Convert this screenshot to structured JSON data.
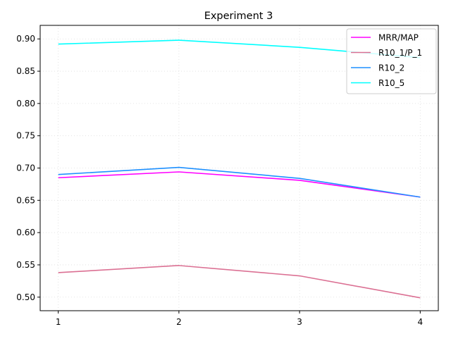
{
  "chart_data": {
    "type": "line",
    "title": "Experiment 3",
    "xlabel": "",
    "ylabel": "",
    "x": [
      1,
      2,
      3,
      4
    ],
    "xlim": [
      0.85,
      4.15
    ],
    "ylim": [
      0.479,
      0.921
    ],
    "xticks": [
      "1",
      "2",
      "3",
      "4"
    ],
    "yticks": [
      "0.50",
      "0.55",
      "0.60",
      "0.65",
      "0.70",
      "0.75",
      "0.80",
      "0.85",
      "0.90"
    ],
    "grid": true,
    "legend_position": "top-right",
    "series": [
      {
        "name": "MRR/MAP",
        "color": "#ff00ff",
        "values": [
          0.685,
          0.694,
          0.681,
          0.655
        ]
      },
      {
        "name": "R10_1/P_1",
        "color": "#db7093",
        "values": [
          0.538,
          0.549,
          0.533,
          0.499
        ]
      },
      {
        "name": "R10_2",
        "color": "#1e90ff",
        "values": [
          0.69,
          0.701,
          0.684,
          0.655
        ]
      },
      {
        "name": "R10_5",
        "color": "#00ffff",
        "values": [
          0.892,
          0.898,
          0.887,
          0.871
        ]
      }
    ]
  }
}
